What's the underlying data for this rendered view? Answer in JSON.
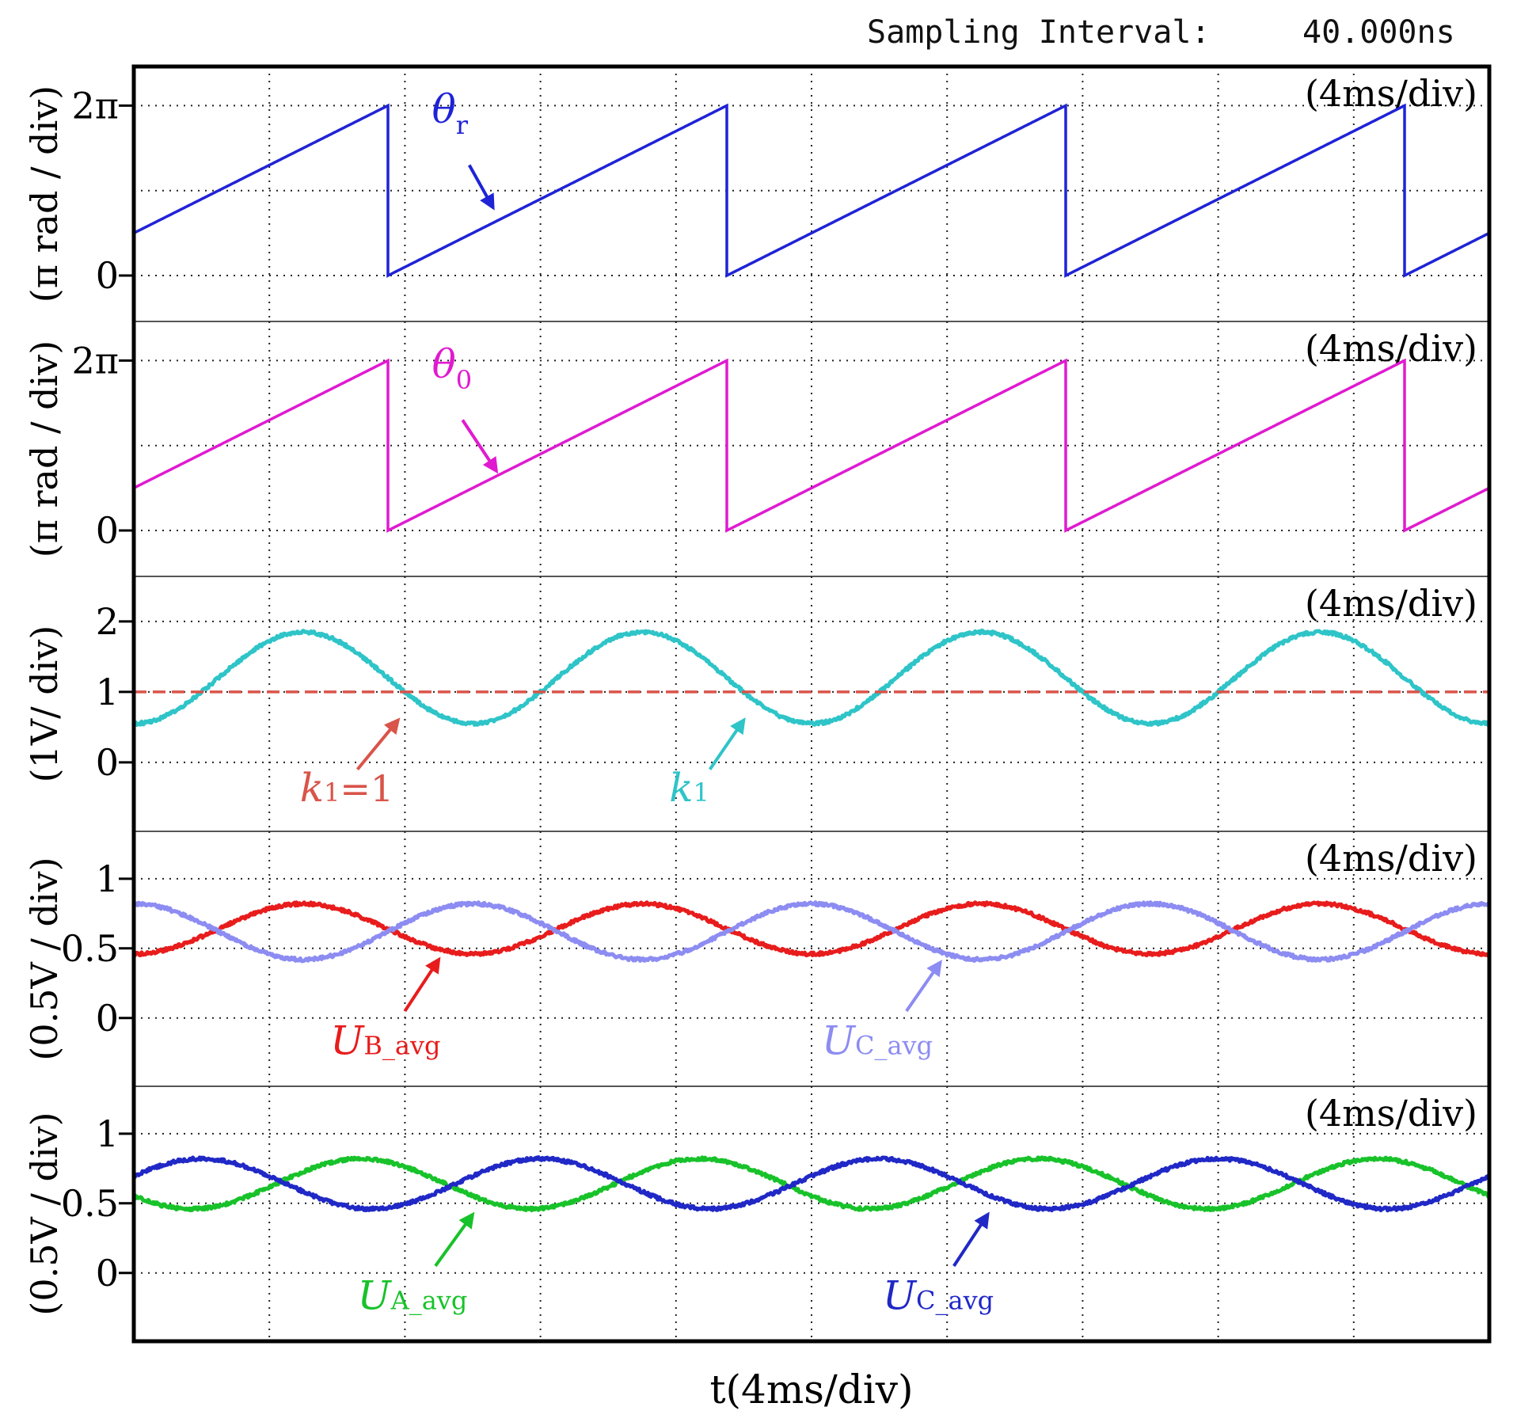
{
  "header": {
    "sampling_label": "Sampling Interval:",
    "sampling_value": "40.000ns"
  },
  "x_axis_label": "t(4ms/div)",
  "chart_data": [
    {
      "type": "line",
      "time_scale": "(4ms/div)",
      "ylabel": "(π rad / div)",
      "ytick_labels": [
        "2π",
        "0"
      ],
      "y_ticks": [
        2,
        0
      ],
      "ylim": [
        -0.54,
        2.46
      ],
      "x_unit": "ms",
      "xlim": [
        0,
        40
      ],
      "grid": true,
      "series": [
        {
          "name": "θr",
          "label_main": "θ",
          "label_sub": "r",
          "color": "#1f23d6",
          "shape": "sawtooth",
          "period_ms": 10,
          "phase_ms": 2.5,
          "min": 0,
          "max": 2,
          "label_pos": [
            8.8,
            1.8
          ],
          "arrow_from": [
            9.9,
            1.3
          ],
          "arrow_to": [
            10.6,
            0.8
          ]
        }
      ]
    },
    {
      "type": "line",
      "time_scale": "(4ms/div)",
      "ylabel": "(π rad / div)",
      "ytick_labels": [
        "2π",
        "0"
      ],
      "y_ticks": [
        2,
        0
      ],
      "ylim": [
        -0.54,
        2.46
      ],
      "x_unit": "ms",
      "xlim": [
        0,
        40
      ],
      "grid": true,
      "series": [
        {
          "name": "θ0",
          "label_main": "θ",
          "label_sub": "0",
          "color": "#e01ad0",
          "shape": "sawtooth",
          "period_ms": 10,
          "phase_ms": 2.5,
          "min": 0,
          "max": 2,
          "label_pos": [
            8.8,
            1.8
          ],
          "arrow_from": [
            9.7,
            1.3
          ],
          "arrow_to": [
            10.7,
            0.7
          ]
        }
      ]
    },
    {
      "type": "line",
      "time_scale": "(4ms/div)",
      "ylabel": "(1V/ div)",
      "ytick_labels": [
        "2",
        "1",
        "0"
      ],
      "y_ticks": [
        2,
        1,
        0
      ],
      "ylim": [
        -0.98,
        2.64
      ],
      "x_unit": "ms",
      "xlim": [
        0,
        40
      ],
      "grid": true,
      "series": [
        {
          "name": "k1",
          "label_main": "k",
          "label_sub": "1",
          "color": "#2ec4c8",
          "shape": "sine",
          "period_ms": 10,
          "peak_ms": 5,
          "offset": 1.2,
          "amplitude": 0.65,
          "width": 5,
          "label_pos": [
            15.8,
            -0.55
          ],
          "arrow_from": [
            17.0,
            -0.1
          ],
          "arrow_to": [
            18.0,
            0.6
          ]
        },
        {
          "name": "k1=1",
          "label_main": "k",
          "label_sub": "1",
          "label_suffix": "=1",
          "color": "#d9544a",
          "shape": "constant",
          "value": 1,
          "dashed": true,
          "label_pos": [
            4.9,
            -0.55
          ],
          "arrow_from": [
            6.6,
            -0.1
          ],
          "arrow_to": [
            7.8,
            0.6
          ]
        }
      ]
    },
    {
      "type": "line",
      "time_scale": "(4ms/div)",
      "ylabel": "(0.5V / div)",
      "ytick_labels": [
        "1",
        "0.5",
        "0"
      ],
      "y_ticks": [
        1,
        0.5,
        0
      ],
      "ylim": [
        -0.49,
        1.34
      ],
      "x_unit": "ms",
      "xlim": [
        0,
        40
      ],
      "grid": true,
      "series": [
        {
          "name": "UB_avg",
          "label_main": "U",
          "label_sub": "B_avg",
          "color": "#e81c1c",
          "shape": "sine",
          "period_ms": 10,
          "peak_ms": 5,
          "offset": 0.64,
          "amplitude": 0.18,
          "width": 5,
          "label_pos": [
            5.8,
            -0.26
          ],
          "arrow_from": [
            8.0,
            0.05
          ],
          "arrow_to": [
            9.0,
            0.42
          ]
        },
        {
          "name": "UC_avg",
          "label_main": "U",
          "label_sub": "C_avg",
          "color": "#8c8cf2",
          "shape": "sine",
          "period_ms": 10,
          "peak_ms": 10,
          "offset": 0.62,
          "amplitude": 0.2,
          "width": 5,
          "label_pos": [
            20.3,
            -0.26
          ],
          "arrow_from": [
            22.8,
            0.05
          ],
          "arrow_to": [
            23.8,
            0.4
          ]
        }
      ]
    },
    {
      "type": "line",
      "time_scale": "(4ms/div)",
      "ylabel": "(0.5V / div)",
      "ytick_labels": [
        "1",
        "0.5",
        "0"
      ],
      "y_ticks": [
        1,
        0.5,
        0
      ],
      "ylim": [
        -0.49,
        1.34
      ],
      "x_unit": "ms",
      "xlim": [
        0,
        40
      ],
      "grid": true,
      "series": [
        {
          "name": "UA_avg",
          "label_main": "U",
          "label_sub": "A_avg",
          "color": "#18c22a",
          "shape": "sine",
          "period_ms": 10,
          "peak_ms": 6.7,
          "offset": 0.64,
          "amplitude": 0.18,
          "width": 5,
          "label_pos": [
            6.6,
            -0.26
          ],
          "arrow_from": [
            8.9,
            0.05
          ],
          "arrow_to": [
            10.0,
            0.42
          ]
        },
        {
          "name": "UC_avg",
          "label_main": "U",
          "label_sub": "C_avg",
          "color": "#2028c6",
          "shape": "sine",
          "period_ms": 10,
          "peak_ms": 2,
          "offset": 0.64,
          "amplitude": 0.18,
          "width": 5,
          "label_pos": [
            22.1,
            -0.26
          ],
          "arrow_from": [
            24.2,
            0.05
          ],
          "arrow_to": [
            25.2,
            0.42
          ]
        }
      ]
    }
  ]
}
